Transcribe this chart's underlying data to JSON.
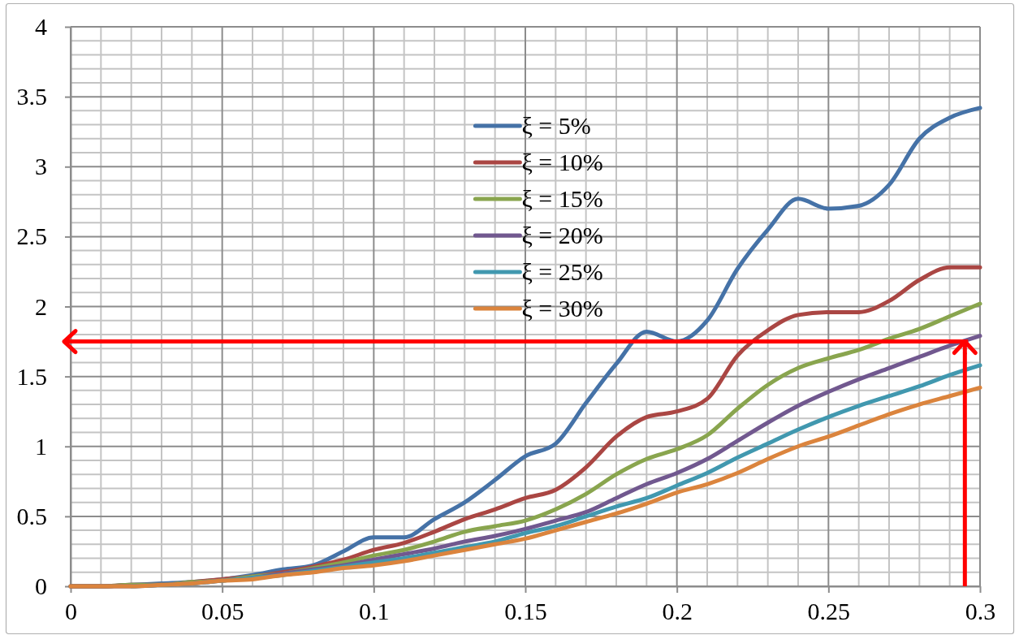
{
  "chart_data": {
    "type": "line",
    "x": [
      0,
      0.01,
      0.02,
      0.03,
      0.04,
      0.05,
      0.06,
      0.07,
      0.08,
      0.09,
      0.1,
      0.11,
      0.12,
      0.13,
      0.14,
      0.15,
      0.16,
      0.17,
      0.18,
      0.19,
      0.2,
      0.21,
      0.22,
      0.23,
      0.24,
      0.25,
      0.26,
      0.27,
      0.28,
      0.29,
      0.3
    ],
    "series": [
      {
        "name": "ξ = 5%",
        "color": "#4572a7",
        "values": [
          0,
          0,
          0.01,
          0.02,
          0.03,
          0.05,
          0.08,
          0.12,
          0.15,
          0.25,
          0.35,
          0.35,
          0.48,
          0.6,
          0.76,
          0.93,
          1.02,
          1.31,
          1.59,
          1.82,
          1.75,
          1.9,
          2.27,
          2.55,
          2.77,
          2.7,
          2.72,
          2.87,
          3.2,
          3.35,
          3.42
        ]
      },
      {
        "name": "ξ = 10%",
        "color": "#aa4643",
        "values": [
          0,
          0,
          0.01,
          0.01,
          0.03,
          0.05,
          0.07,
          0.1,
          0.14,
          0.19,
          0.26,
          0.31,
          0.39,
          0.48,
          0.55,
          0.63,
          0.69,
          0.85,
          1.07,
          1.21,
          1.25,
          1.34,
          1.65,
          1.83,
          1.94,
          1.96,
          1.96,
          2.04,
          2.19,
          2.28,
          2.28
        ]
      },
      {
        "name": "ξ = 15%",
        "color": "#89a54e",
        "values": [
          0,
          0,
          0.01,
          0.01,
          0.03,
          0.04,
          0.07,
          0.09,
          0.13,
          0.17,
          0.22,
          0.26,
          0.32,
          0.39,
          0.43,
          0.47,
          0.55,
          0.66,
          0.8,
          0.91,
          0.98,
          1.08,
          1.27,
          1.44,
          1.56,
          1.63,
          1.69,
          1.77,
          1.84,
          1.93,
          2.02
        ]
      },
      {
        "name": "ξ = 20%",
        "color": "#71588f",
        "values": [
          0,
          0,
          0,
          0.01,
          0.02,
          0.04,
          0.06,
          0.09,
          0.12,
          0.15,
          0.19,
          0.23,
          0.27,
          0.32,
          0.36,
          0.41,
          0.47,
          0.53,
          0.63,
          0.73,
          0.81,
          0.91,
          1.04,
          1.17,
          1.29,
          1.39,
          1.48,
          1.56,
          1.64,
          1.72,
          1.79
        ]
      },
      {
        "name": "ξ = 25%",
        "color": "#4198af",
        "values": [
          null,
          null,
          0,
          0.01,
          0.02,
          0.04,
          0.06,
          0.08,
          0.11,
          0.14,
          0.17,
          0.2,
          0.24,
          0.28,
          0.32,
          0.38,
          0.43,
          0.5,
          0.57,
          0.63,
          0.72,
          0.81,
          0.92,
          1.02,
          1.12,
          1.21,
          1.29,
          1.36,
          1.43,
          1.51,
          1.58
        ]
      },
      {
        "name": "ξ = 30%",
        "color": "#db843d",
        "values": [
          0,
          0,
          0,
          0.01,
          0.02,
          0.04,
          0.05,
          0.08,
          0.1,
          0.13,
          0.15,
          0.18,
          0.22,
          0.26,
          0.3,
          0.34,
          0.4,
          0.46,
          0.52,
          0.59,
          0.67,
          0.73,
          0.81,
          0.91,
          1.0,
          1.07,
          1.15,
          1.23,
          1.3,
          1.36,
          1.42
        ]
      }
    ],
    "xlim": [
      0,
      0.3
    ],
    "xticks": [
      0,
      0.05,
      0.1,
      0.15,
      0.2,
      0.25,
      0.3
    ],
    "ylim": [
      0,
      4
    ],
    "yticks": [
      0,
      0.5,
      1,
      1.5,
      2,
      2.5,
      3,
      3.5,
      4
    ],
    "ref_lines": [
      {
        "axis": "y",
        "value": 1.75,
        "color": "#ff0000"
      },
      {
        "axis": "x",
        "value": 0.295,
        "color": "#ff0000"
      }
    ],
    "grid": true,
    "legend": "top",
    "marker": "none",
    "line_style": "solid"
  }
}
